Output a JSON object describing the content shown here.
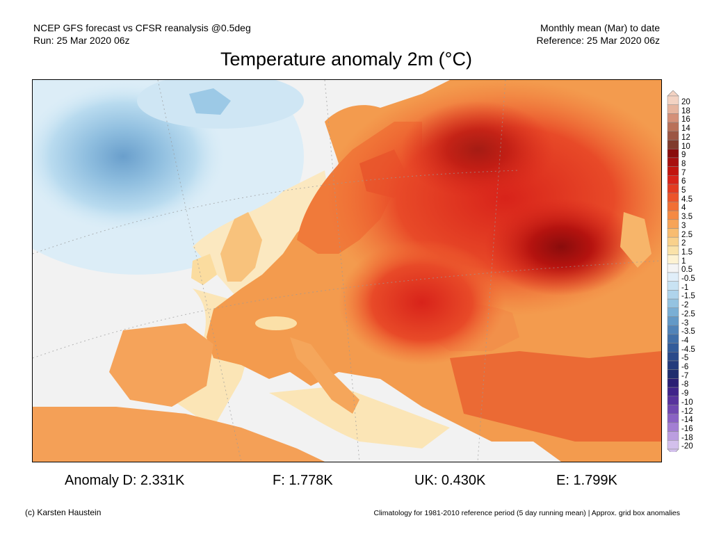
{
  "header": {
    "left_line1": "NCEP GFS forecast vs CFSR reanalysis @0.5deg",
    "left_line2": "Run: 25 Mar 2020 06z",
    "right_line1": "Monthly mean (Mar) to date",
    "right_line2": "Reference: 25 Mar 2020 06z"
  },
  "title": "Temperature anomaly 2m (°C)",
  "colorbar": {
    "labels": [
      "20",
      "18",
      "16",
      "14",
      "12",
      "10",
      "9",
      "8",
      "7",
      "6",
      "5",
      "4.5",
      "4",
      "3.5",
      "3",
      "2.5",
      "2",
      "1.5",
      "1",
      "0.5",
      "-0.5",
      "-1",
      "-1.5",
      "-2",
      "-2.5",
      "-3",
      "-3.5",
      "-4",
      "-4.5",
      "-5",
      "-6",
      "-7",
      "-8",
      "-9",
      "-10",
      "-12",
      "-14",
      "-16",
      "-18",
      "-20"
    ],
    "colors": [
      "#f3d3c3",
      "#e6b59f",
      "#d49078",
      "#b97058",
      "#9c5643",
      "#7f3b2c",
      "#8a0c0c",
      "#a80f0f",
      "#c2140f",
      "#d8231a",
      "#e33b22",
      "#ec542b",
      "#f26f34",
      "#f58a44",
      "#f7a458",
      "#f8bc70",
      "#f9d18c",
      "#fae2a9",
      "#fdf2d2",
      "#f4f4f4",
      "#e0eef9",
      "#c9e3f3",
      "#afd4ec",
      "#94c3e1",
      "#7aafd5",
      "#6399c7",
      "#5183b8",
      "#406ea8",
      "#335c9a",
      "#2a4a8a",
      "#243b7c",
      "#202e6e",
      "#2b1f74",
      "#40248a",
      "#58339d",
      "#7048b0",
      "#8a62c4",
      "#a37fd3",
      "#bb9ee0",
      "#d3c0ec"
    ]
  },
  "stats": [
    {
      "label": "Anomaly D: 2.331K"
    },
    {
      "label": "F: 1.778K"
    },
    {
      "label": "UK: 0.430K"
    },
    {
      "label": "E: 1.799K"
    }
  ],
  "footer": {
    "credit": "(c) Karsten Haustein",
    "note": "Climatology for 1981-2010 reference period (5 day running mean) | Approx. grid box anomalies"
  }
}
